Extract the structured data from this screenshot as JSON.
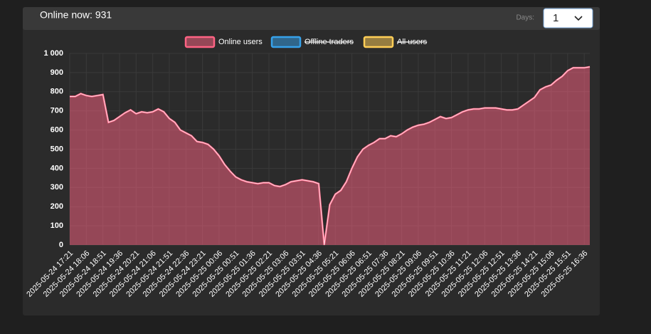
{
  "header": {
    "title": "Online now: 931",
    "days_label": "Days:",
    "days_value": "1"
  },
  "chart_data": {
    "type": "line",
    "categories": [
      "2025-05-24 17:21",
      null,
      null,
      "2025-05-24 18:06",
      null,
      null,
      "2025-05-24 18:51",
      null,
      null,
      "2025-05-24 19:36",
      null,
      null,
      "2025-05-24 20:21",
      null,
      null,
      "2025-05-24 21:06",
      null,
      null,
      "2025-05-24 21:51",
      null,
      null,
      "2025-05-24 22:36",
      null,
      null,
      "2025-05-24 23:21",
      null,
      null,
      "2025-05-25 00:06",
      null,
      null,
      "2025-05-25 00:51",
      null,
      null,
      "2025-05-25 01:36",
      null,
      null,
      "2025-05-25 02:21",
      null,
      null,
      "2025-05-25 03:06",
      null,
      null,
      "2025-05-25 03:51",
      null,
      null,
      "2025-05-25 04:36",
      null,
      null,
      "2025-05-25 05:21",
      null,
      null,
      "2025-05-25 06:06",
      null,
      null,
      "2025-05-25 06:51",
      null,
      null,
      "2025-05-25 07:36",
      null,
      null,
      "2025-05-25 08:21",
      null,
      null,
      "2025-05-25 09:06",
      null,
      null,
      "2025-05-25 09:51",
      null,
      null,
      "2025-05-25 10:36",
      null,
      null,
      "2025-05-25 11:21",
      null,
      null,
      "2025-05-25 12:06",
      null,
      null,
      "2025-05-25 12:51",
      null,
      null,
      "2025-05-25 13:36",
      null,
      null,
      "2025-05-25 14:21",
      null,
      null,
      "2025-05-25 15:06",
      null,
      null,
      "2025-05-25 15:51",
      null,
      null,
      "2025-05-25 16:36",
      null
    ],
    "series": [
      {
        "name": "Online users",
        "color": "#ff6384",
        "fill": "rgba(255,99,132,0.5)",
        "values": [
          775,
          775,
          790,
          780,
          775,
          780,
          785,
          640,
          650,
          670,
          690,
          705,
          685,
          695,
          690,
          695,
          710,
          695,
          660,
          640,
          600,
          585,
          570,
          540,
          535,
          525,
          500,
          465,
          420,
          385,
          355,
          340,
          330,
          325,
          320,
          325,
          325,
          310,
          305,
          315,
          330,
          335,
          340,
          335,
          330,
          320,
          0,
          210,
          265,
          285,
          330,
          400,
          460,
          500,
          520,
          535,
          555,
          555,
          570,
          565,
          580,
          600,
          615,
          625,
          630,
          640,
          655,
          670,
          660,
          665,
          680,
          695,
          705,
          710,
          710,
          715,
          715,
          715,
          710,
          705,
          705,
          710,
          730,
          750,
          770,
          810,
          825,
          835,
          860,
          880,
          910,
          925,
          925,
          925,
          930
        ]
      },
      {
        "name": "Offline traders",
        "color": "#36a2eb",
        "hidden": true
      },
      {
        "name": "All users",
        "color": "#ffce56",
        "hidden": true
      }
    ],
    "ylim": [
      0,
      1000
    ],
    "yticks": [
      0,
      100,
      200,
      300,
      400,
      500,
      600,
      700,
      800,
      900,
      {
        "value": 1000,
        "label": "1 000"
      }
    ],
    "grid": true
  }
}
